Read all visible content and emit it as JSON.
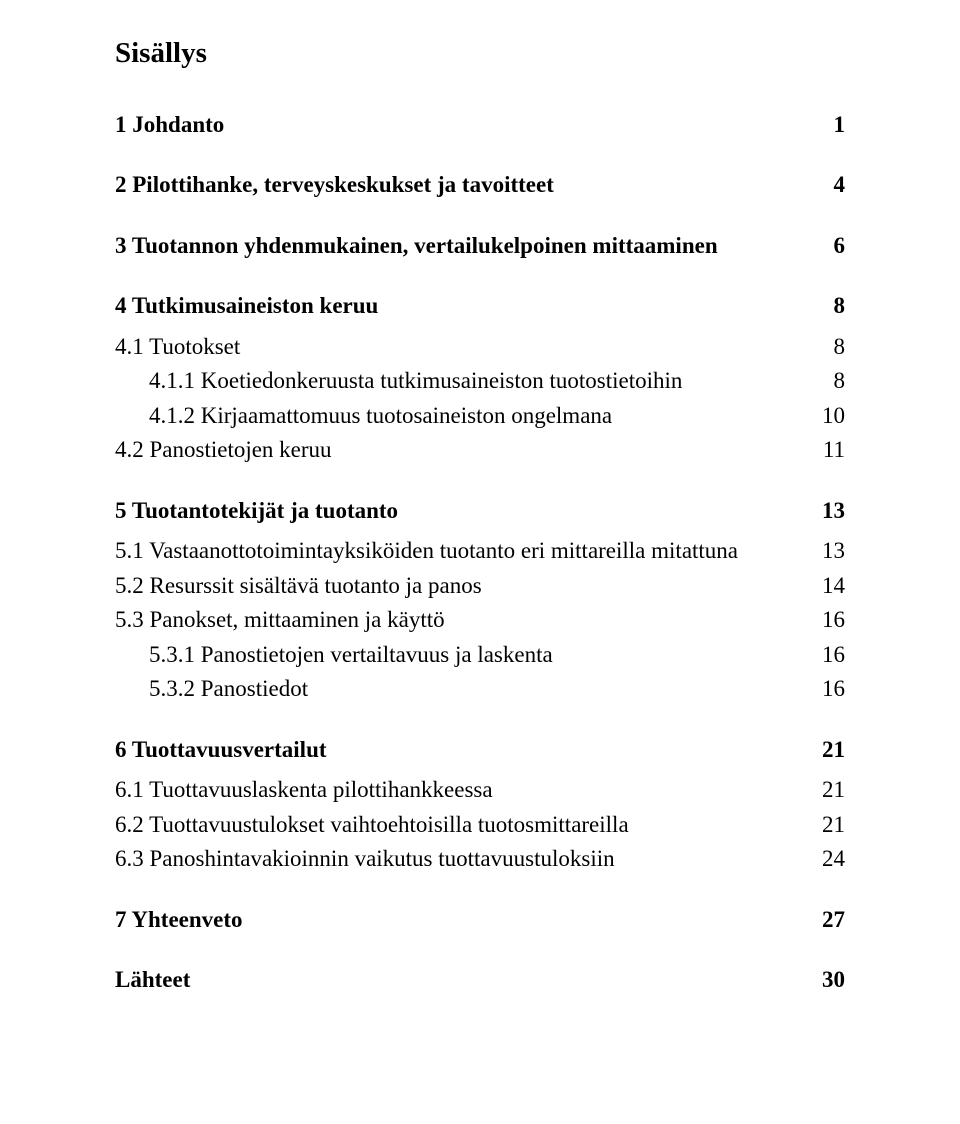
{
  "title": "Sisällys",
  "entries": [
    {
      "level": 1,
      "bold": true,
      "label": "1 Johdanto",
      "page": "1"
    },
    {
      "level": 1,
      "bold": true,
      "label": "2 Pilottihanke, terveyskeskukset ja tavoitteet",
      "page": "4"
    },
    {
      "level": 1,
      "bold": true,
      "label": "3 Tuotannon yhdenmukainen, vertailukelpoinen mittaaminen",
      "page": "6"
    },
    {
      "level": 1,
      "bold": true,
      "label": "4 Tutkimusaineiston keruu",
      "page": "8"
    },
    {
      "level": 2,
      "bold": false,
      "label": "4.1 Tuotokset",
      "page": "8"
    },
    {
      "level": 3,
      "bold": false,
      "label": "4.1.1 Koetiedonkeruusta tutkimusaineiston tuotostietoihin",
      "page": "8"
    },
    {
      "level": 3,
      "bold": false,
      "label": "4.1.2 Kirjaamattomuus tuotosaineiston ongelmana",
      "page": "10"
    },
    {
      "level": 2,
      "bold": false,
      "label": "4.2 Panostietojen keruu",
      "page": "11"
    },
    {
      "level": 1,
      "bold": true,
      "label": "5 Tuotantotekijät ja tuotanto",
      "page": "13"
    },
    {
      "level": 2,
      "bold": false,
      "label": "5.1 Vastaanottotoimintayksiköiden tuotanto eri mittareilla mitattuna",
      "page": "13"
    },
    {
      "level": 2,
      "bold": false,
      "label": "5.2 Resurssit sisältävä tuotanto ja panos",
      "page": "14"
    },
    {
      "level": 2,
      "bold": false,
      "label": "5.3 Panokset, mittaaminen ja käyttö",
      "page": "16"
    },
    {
      "level": 3,
      "bold": false,
      "label": "5.3.1 Panostietojen vertailtavuus ja laskenta",
      "page": "16"
    },
    {
      "level": 3,
      "bold": false,
      "label": "5.3.2 Panostiedot",
      "page": "16"
    },
    {
      "level": 1,
      "bold": true,
      "label": "6 Tuottavuusvertailut",
      "page": "21"
    },
    {
      "level": 2,
      "bold": false,
      "label": "6.1 Tuottavuuslaskenta pilottihankkeessa",
      "page": "21"
    },
    {
      "level": 2,
      "bold": false,
      "label": "6.2 Tuottavuustulokset vaihtoehtoisilla tuotosmittareilla",
      "page": "21"
    },
    {
      "level": 2,
      "bold": false,
      "label": "6.3 Panoshintavakioinnin vaikutus tuottavuustuloksiin",
      "page": "24"
    },
    {
      "level": 1,
      "bold": true,
      "label": "7 Yhteenveto",
      "page": "27"
    },
    {
      "level": 1,
      "bold": true,
      "label": "Lähteet",
      "page": "30"
    }
  ]
}
